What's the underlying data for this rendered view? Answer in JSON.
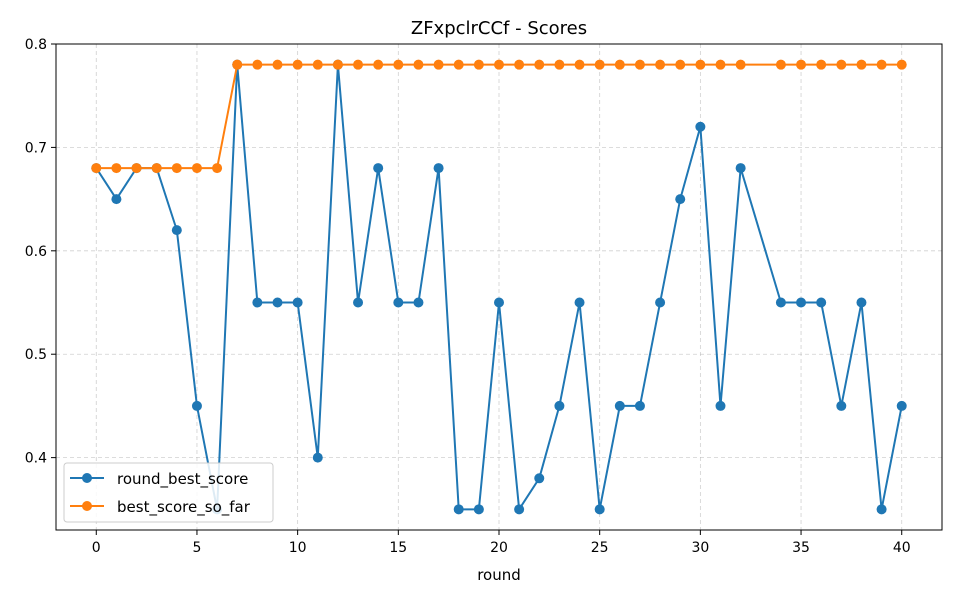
{
  "chart_data": {
    "type": "line",
    "title": "ZFxpclrCCf - Scores",
    "xlabel": "round",
    "ylabel": "",
    "xlim": [
      -2,
      42
    ],
    "ylim": [
      0.33,
      0.8
    ],
    "xticks": [
      0,
      5,
      10,
      15,
      20,
      25,
      30,
      35,
      40
    ],
    "yticks": [
      0.4,
      0.5,
      0.6,
      0.7,
      0.8
    ],
    "xtick_labels": [
      "0",
      "5",
      "10",
      "15",
      "20",
      "25",
      "30",
      "35",
      "40"
    ],
    "ytick_labels": [
      "0.4",
      "0.5",
      "0.6",
      "0.7",
      "0.8"
    ],
    "grid": true,
    "legend_position": "bottom-left",
    "series": [
      {
        "name": "round_best_score",
        "color": "#1f77b4",
        "x": [
          0,
          1,
          2,
          3,
          4,
          5,
          6,
          7,
          8,
          9,
          10,
          11,
          12,
          13,
          14,
          15,
          16,
          17,
          18,
          19,
          20,
          21,
          22,
          23,
          24,
          25,
          26,
          27,
          28,
          29,
          30,
          31,
          32,
          34,
          35,
          36,
          37,
          38,
          39,
          40
        ],
        "y": [
          0.68,
          0.65,
          0.68,
          0.68,
          0.62,
          0.45,
          0.35,
          0.78,
          0.55,
          0.55,
          0.55,
          0.4,
          0.78,
          0.55,
          0.68,
          0.55,
          0.55,
          0.68,
          0.35,
          0.35,
          0.55,
          0.35,
          0.38,
          0.45,
          0.55,
          0.35,
          0.45,
          0.45,
          0.55,
          0.65,
          0.72,
          0.45,
          0.68,
          0.55,
          0.55,
          0.55,
          0.45,
          0.55,
          0.35,
          0.45
        ]
      },
      {
        "name": "best_score_so_far",
        "color": "#ff7f0e",
        "x": [
          0,
          1,
          2,
          3,
          4,
          5,
          6,
          7,
          8,
          9,
          10,
          11,
          12,
          13,
          14,
          15,
          16,
          17,
          18,
          19,
          20,
          21,
          22,
          23,
          24,
          25,
          26,
          27,
          28,
          29,
          30,
          31,
          32,
          34,
          35,
          36,
          37,
          38,
          39,
          40
        ],
        "y": [
          0.68,
          0.68,
          0.68,
          0.68,
          0.68,
          0.68,
          0.68,
          0.78,
          0.78,
          0.78,
          0.78,
          0.78,
          0.78,
          0.78,
          0.78,
          0.78,
          0.78,
          0.78,
          0.78,
          0.78,
          0.78,
          0.78,
          0.78,
          0.78,
          0.78,
          0.78,
          0.78,
          0.78,
          0.78,
          0.78,
          0.78,
          0.78,
          0.78,
          0.78,
          0.78,
          0.78,
          0.78,
          0.78,
          0.78,
          0.78
        ]
      }
    ]
  }
}
